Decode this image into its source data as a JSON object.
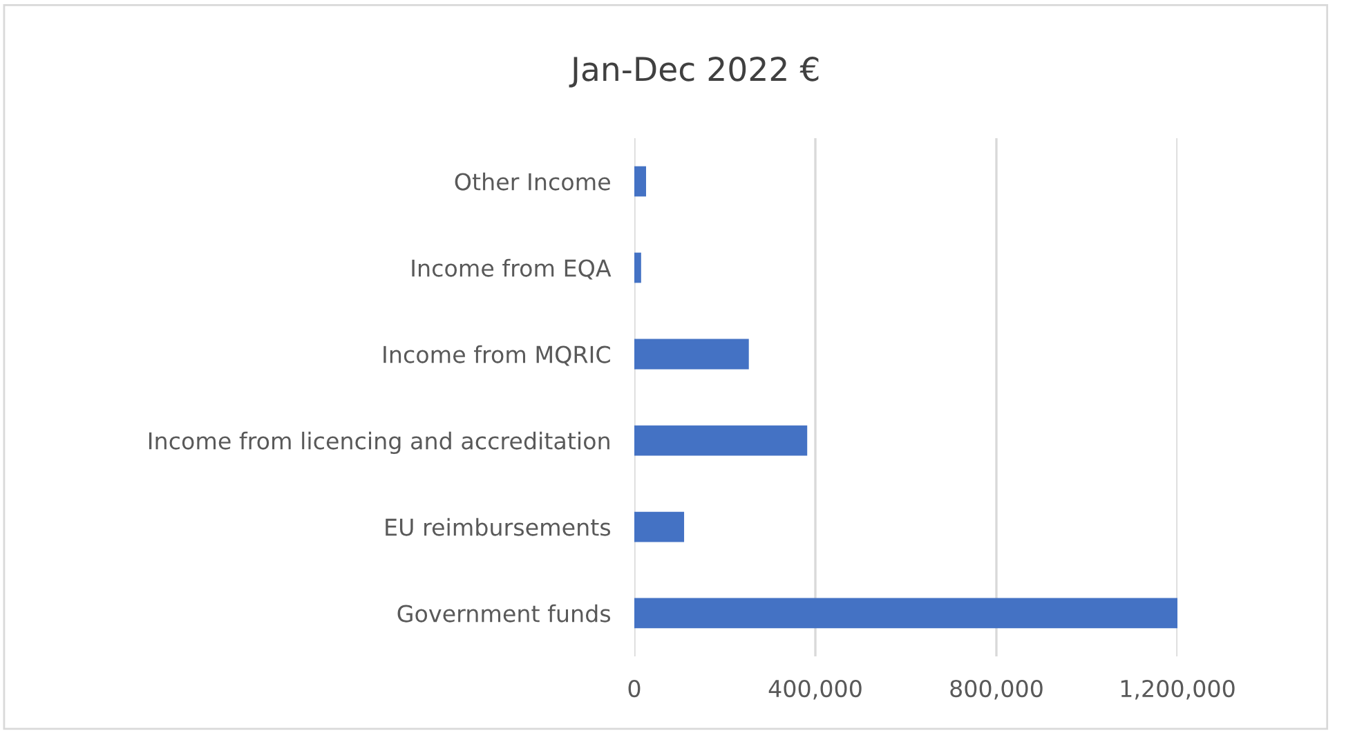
{
  "chart_data": {
    "type": "bar",
    "orientation": "horizontal",
    "title": "Jan-Dec 2022 €",
    "categories": [
      "Other Income",
      "Income from EQA",
      "Income from MQRIC",
      "Income from licencing and accreditation",
      "EU reimbursements",
      "Government funds"
    ],
    "values": [
      26000,
      15000,
      253000,
      382000,
      110000,
      1200000
    ],
    "color": "#4472c4",
    "xlim": [
      0,
      1200000
    ],
    "xticks": [
      {
        "value": 0,
        "label": "0"
      },
      {
        "value": 400000,
        "label": "400,000"
      },
      {
        "value": 800000,
        "label": "800,000"
      },
      {
        "value": 1200000,
        "label": "1,200,000"
      }
    ],
    "grid": "x"
  }
}
